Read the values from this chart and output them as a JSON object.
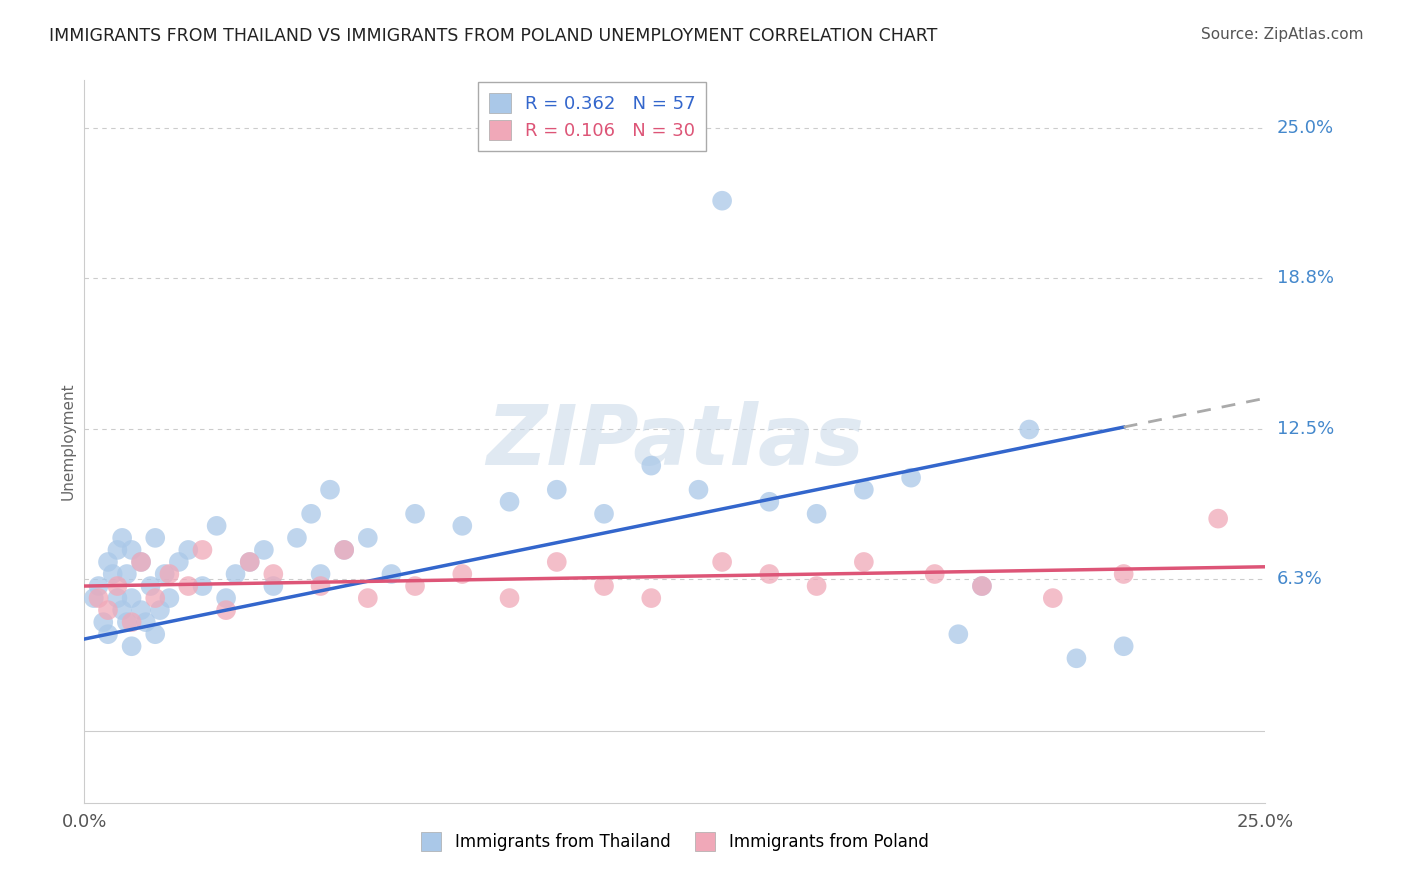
{
  "title": "IMMIGRANTS FROM THAILAND VS IMMIGRANTS FROM POLAND UNEMPLOYMENT CORRELATION CHART",
  "source": "Source: ZipAtlas.com",
  "ylabel": "Unemployment",
  "xlim": [
    0.0,
    0.25
  ],
  "ylim": [
    -0.03,
    0.27
  ],
  "xtick_values": [
    0.0,
    0.25
  ],
  "xtick_labels": [
    "0.0%",
    "25.0%"
  ],
  "ytick_values": [
    0.063,
    0.125,
    0.188,
    0.25
  ],
  "ytick_labels": [
    "6.3%",
    "12.5%",
    "18.8%",
    "25.0%"
  ],
  "R_thailand": 0.362,
  "N_thailand": 57,
  "R_poland": 0.106,
  "N_poland": 30,
  "color_thailand": "#aac8e8",
  "color_poland": "#f0a8b8",
  "color_trend_thailand": "#3366cc",
  "color_trend_poland": "#dd5577",
  "color_trend_ext": "#aaaaaa",
  "trend_th_x0": 0.0,
  "trend_th_y0": 0.038,
  "trend_th_x1": 0.22,
  "trend_th_y1": 0.126,
  "trend_th_ext_x1": 0.25,
  "trend_th_ext_y1": 0.138,
  "trend_pl_x0": 0.0,
  "trend_pl_y0": 0.06,
  "trend_pl_x1": 0.25,
  "trend_pl_y1": 0.068,
  "watermark_text": "ZIPatlas",
  "thailand_x": [
    0.002,
    0.003,
    0.004,
    0.005,
    0.005,
    0.006,
    0.007,
    0.007,
    0.008,
    0.008,
    0.009,
    0.009,
    0.01,
    0.01,
    0.01,
    0.012,
    0.012,
    0.013,
    0.014,
    0.015,
    0.015,
    0.016,
    0.017,
    0.018,
    0.02,
    0.022,
    0.025,
    0.028,
    0.03,
    0.032,
    0.035,
    0.038,
    0.04,
    0.045,
    0.048,
    0.05,
    0.052,
    0.055,
    0.06,
    0.065,
    0.07,
    0.08,
    0.09,
    0.1,
    0.11,
    0.12,
    0.13,
    0.135,
    0.145,
    0.155,
    0.165,
    0.175,
    0.185,
    0.19,
    0.2,
    0.21,
    0.22
  ],
  "thailand_y": [
    0.055,
    0.06,
    0.045,
    0.07,
    0.04,
    0.065,
    0.055,
    0.075,
    0.05,
    0.08,
    0.045,
    0.065,
    0.035,
    0.055,
    0.075,
    0.05,
    0.07,
    0.045,
    0.06,
    0.04,
    0.08,
    0.05,
    0.065,
    0.055,
    0.07,
    0.075,
    0.06,
    0.085,
    0.055,
    0.065,
    0.07,
    0.075,
    0.06,
    0.08,
    0.09,
    0.065,
    0.1,
    0.075,
    0.08,
    0.065,
    0.09,
    0.085,
    0.095,
    0.1,
    0.09,
    0.11,
    0.1,
    0.22,
    0.095,
    0.09,
    0.1,
    0.105,
    0.04,
    0.06,
    0.125,
    0.03,
    0.035
  ],
  "poland_x": [
    0.003,
    0.005,
    0.007,
    0.01,
    0.012,
    0.015,
    0.018,
    0.022,
    0.025,
    0.03,
    0.035,
    0.04,
    0.05,
    0.055,
    0.06,
    0.07,
    0.08,
    0.09,
    0.1,
    0.11,
    0.12,
    0.135,
    0.145,
    0.155,
    0.165,
    0.18,
    0.19,
    0.205,
    0.22,
    0.24
  ],
  "poland_y": [
    0.055,
    0.05,
    0.06,
    0.045,
    0.07,
    0.055,
    0.065,
    0.06,
    0.075,
    0.05,
    0.07,
    0.065,
    0.06,
    0.075,
    0.055,
    0.06,
    0.065,
    0.055,
    0.07,
    0.06,
    0.055,
    0.07,
    0.065,
    0.06,
    0.07,
    0.065,
    0.06,
    0.055,
    0.065,
    0.088
  ]
}
